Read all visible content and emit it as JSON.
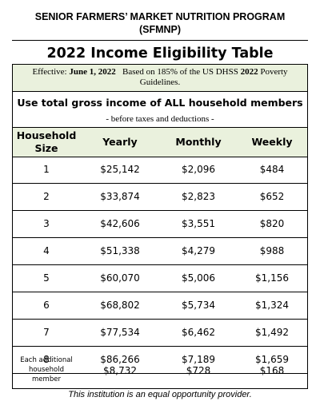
{
  "header": {
    "line1": "SENIOR FARMERS’ MARKET NUTRITION PROGRAM",
    "line2": "(SFMNP)"
  },
  "title": "2022 Income Eligibility Table",
  "effective": {
    "label": "Effective:",
    "date": "June 1, 2022",
    "basis_start": "Based on 185% of the US DHSS",
    "basis_year": "2022",
    "basis_end": "Poverty",
    "line2": "Guidelines."
  },
  "instruction": "Use total gross income of ALL household members",
  "subnote": "- before taxes and deductions -",
  "table": {
    "columns": {
      "household_line1": "Household",
      "household_line2": "Size",
      "yearly": "Yearly",
      "monthly": "Monthly",
      "weekly": "Weekly"
    },
    "rows": [
      {
        "size": "1",
        "yearly": "$25,142",
        "monthly": "$2,096",
        "weekly": "$484"
      },
      {
        "size": "2",
        "yearly": "$33,874",
        "monthly": "$2,823",
        "weekly": "$652"
      },
      {
        "size": "3",
        "yearly": "$42,606",
        "monthly": "$3,551",
        "weekly": "$820"
      },
      {
        "size": "4",
        "yearly": "$51,338",
        "monthly": "$4,279",
        "weekly": "$988"
      },
      {
        "size": "5",
        "yearly": "$60,070",
        "monthly": "$5,006",
        "weekly": "$1,156"
      },
      {
        "size": "6",
        "yearly": "$68,802",
        "monthly": "$5,734",
        "weekly": "$1,324"
      },
      {
        "size": "7",
        "yearly": "$77,534",
        "monthly": "$6,462",
        "weekly": "$1,492"
      },
      {
        "size": "8",
        "yearly": "$86,266",
        "monthly": "$7,189",
        "weekly": "$1,659"
      }
    ],
    "additional": {
      "label_line1": "Each additional",
      "label_line2": "household",
      "label_line3": "member",
      "yearly": "$8,732",
      "monthly": "$728",
      "weekly": "$168"
    }
  },
  "footer": "This institution is an equal opportunity provider.",
  "colors": {
    "highlight": "#eaf1dd"
  }
}
